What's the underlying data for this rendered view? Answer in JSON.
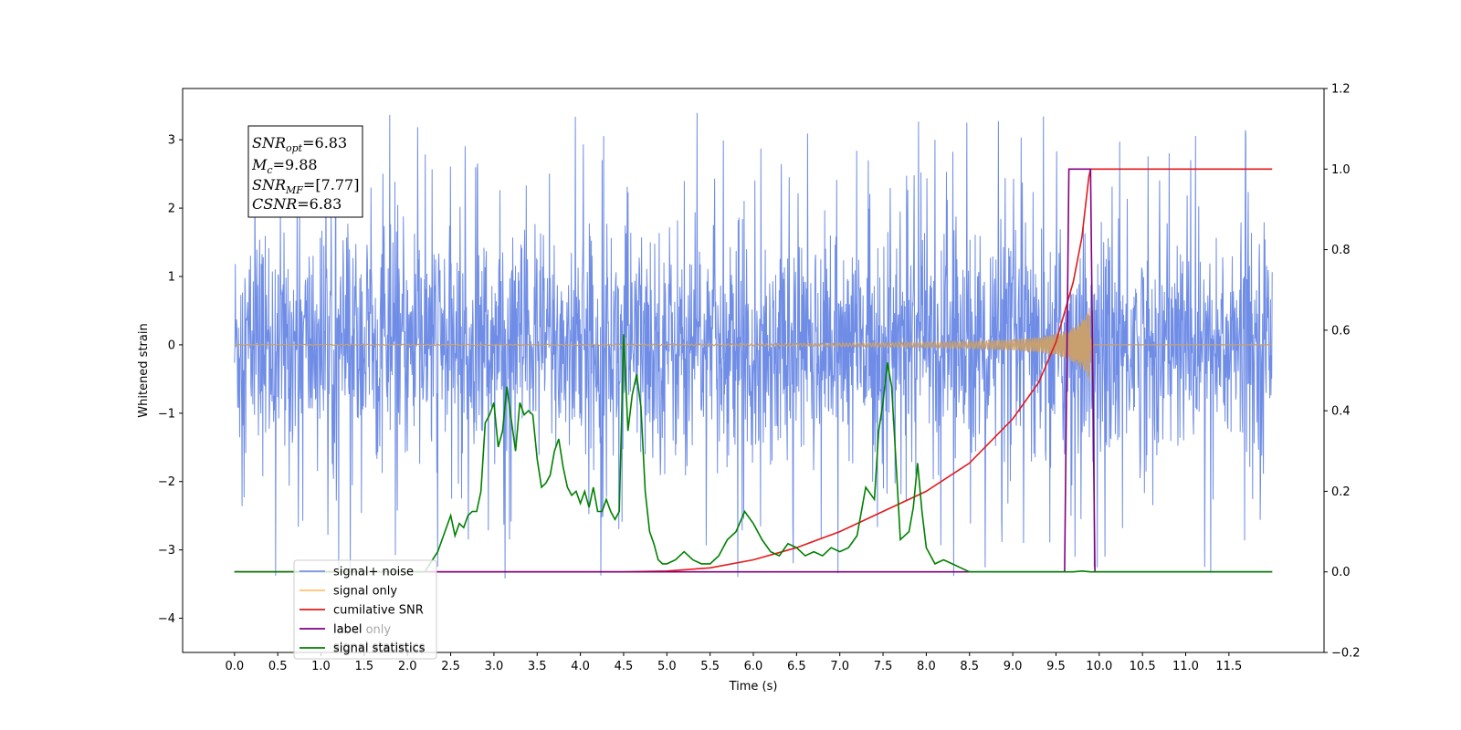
{
  "chart_data": {
    "type": "line",
    "xlabel": "Time (s)",
    "ylabel": "Whitened strain",
    "x_ticks": [
      "0.0",
      "0.5",
      "1.0",
      "1.5",
      "2.0",
      "2.5",
      "3.0",
      "3.5",
      "4.0",
      "4.5",
      "5.0",
      "5.5",
      "6.0",
      "6.5",
      "7.0",
      "7.5",
      "8.0",
      "8.5",
      "9.0",
      "9.5",
      "10.0",
      "10.5",
      "11.0",
      "11.5"
    ],
    "xlim": [
      -0.6,
      12.6
    ],
    "ylim_left": [
      -4.5,
      3.75
    ],
    "yticks_left": [
      3,
      2,
      1,
      0,
      -1,
      -2,
      -3,
      -4
    ],
    "ylim_right": [
      -0.2,
      1.2
    ],
    "yticks_right": [
      1.2,
      1.0,
      0.8,
      0.6,
      0.4,
      0.2,
      0.0,
      -0.2
    ],
    "annotation": {
      "snr_opt": "6.83",
      "mc": "9.88",
      "snr_mf": "[7.77]",
      "csnr": "6.83"
    },
    "legend": {
      "placement": "lower-left",
      "entries": [
        "signal+ noise",
        "signal only",
        "cumilative SNR",
        "label",
        "signal statistics"
      ],
      "overlapped_text": [
        "label only",
        "signal statistics"
      ]
    },
    "series": [
      {
        "name": "signal+ noise",
        "color": "#6f8de6",
        "axis": "left",
        "description": "noise band approx ±1.8 with spikes to ±3.4",
        "x_range": [
          0.0,
          12.0
        ],
        "band": [
          -1.8,
          1.8
        ]
      },
      {
        "name": "signal only",
        "color": "#c8a070",
        "axis": "left",
        "x": [
          0,
          5,
          6,
          7,
          8,
          8.5,
          9,
          9.3,
          9.5,
          9.65,
          9.75,
          9.85,
          9.9,
          9.93
        ],
        "envelope": [
          0.005,
          0.01,
          0.015,
          0.025,
          0.04,
          0.05,
          0.08,
          0.11,
          0.16,
          0.22,
          0.3,
          0.45,
          0.6,
          0.75
        ]
      },
      {
        "name": "cumilative SNR",
        "color": "#e31a1c",
        "axis": "right",
        "x": [
          0,
          4.5,
          5.0,
          5.5,
          6.0,
          6.5,
          7.0,
          7.5,
          8.0,
          8.5,
          9.0,
          9.3,
          9.5,
          9.7,
          9.8,
          9.88,
          9.9,
          12.0
        ],
        "values": [
          0.0,
          0.0,
          0.002,
          0.01,
          0.03,
          0.06,
          0.1,
          0.15,
          0.2,
          0.27,
          0.38,
          0.47,
          0.57,
          0.72,
          0.83,
          0.98,
          1.0,
          1.0
        ]
      },
      {
        "name": "label",
        "color": "#800080",
        "axis": "right",
        "x": [
          0.0,
          9.6,
          9.65,
          9.9,
          9.95,
          12.0
        ],
        "values": [
          0.0,
          0.0,
          1.0,
          1.0,
          0.0,
          0.0
        ]
      },
      {
        "name": "signal statistics",
        "color": "#008000",
        "axis": "right",
        "x": [
          0.0,
          2.2,
          2.35,
          2.5,
          2.55,
          2.6,
          2.65,
          2.7,
          2.75,
          2.8,
          2.85,
          2.9,
          2.95,
          3.0,
          3.05,
          3.1,
          3.15,
          3.2,
          3.25,
          3.3,
          3.35,
          3.4,
          3.45,
          3.5,
          3.55,
          3.6,
          3.65,
          3.7,
          3.75,
          3.8,
          3.85,
          3.9,
          3.95,
          4.0,
          4.05,
          4.1,
          4.15,
          4.2,
          4.25,
          4.3,
          4.35,
          4.4,
          4.45,
          4.5,
          4.55,
          4.6,
          4.65,
          4.7,
          4.75,
          4.8,
          4.85,
          4.9,
          4.95,
          5.0,
          5.1,
          5.2,
          5.3,
          5.4,
          5.5,
          5.6,
          5.7,
          5.8,
          5.9,
          6.0,
          6.1,
          6.2,
          6.3,
          6.4,
          6.5,
          6.6,
          6.7,
          6.8,
          6.9,
          7.0,
          7.1,
          7.2,
          7.3,
          7.4,
          7.45,
          7.5,
          7.55,
          7.6,
          7.65,
          7.7,
          7.8,
          7.85,
          7.9,
          7.95,
          8.0,
          8.1,
          8.2,
          8.3,
          8.4,
          8.5,
          8.6,
          9.5,
          9.7,
          9.8,
          9.9,
          10.0,
          12.0
        ],
        "values": [
          0.0,
          0.0,
          0.05,
          0.14,
          0.09,
          0.12,
          0.11,
          0.14,
          0.15,
          0.15,
          0.2,
          0.37,
          0.39,
          0.42,
          0.31,
          0.35,
          0.46,
          0.38,
          0.3,
          0.42,
          0.39,
          0.4,
          0.39,
          0.28,
          0.21,
          0.22,
          0.24,
          0.3,
          0.33,
          0.26,
          0.21,
          0.19,
          0.2,
          0.17,
          0.2,
          0.16,
          0.21,
          0.15,
          0.15,
          0.18,
          0.15,
          0.13,
          0.15,
          0.59,
          0.35,
          0.44,
          0.49,
          0.41,
          0.2,
          0.1,
          0.07,
          0.03,
          0.02,
          0.02,
          0.03,
          0.05,
          0.03,
          0.02,
          0.02,
          0.04,
          0.08,
          0.1,
          0.15,
          0.12,
          0.08,
          0.05,
          0.04,
          0.07,
          0.06,
          0.04,
          0.05,
          0.04,
          0.06,
          0.05,
          0.06,
          0.09,
          0.21,
          0.18,
          0.35,
          0.42,
          0.52,
          0.46,
          0.27,
          0.08,
          0.1,
          0.16,
          0.27,
          0.15,
          0.06,
          0.02,
          0.03,
          0.02,
          0.01,
          0.0,
          0.0,
          0.0,
          0.0,
          0.002,
          0.0,
          0.0,
          0.0
        ]
      }
    ]
  }
}
